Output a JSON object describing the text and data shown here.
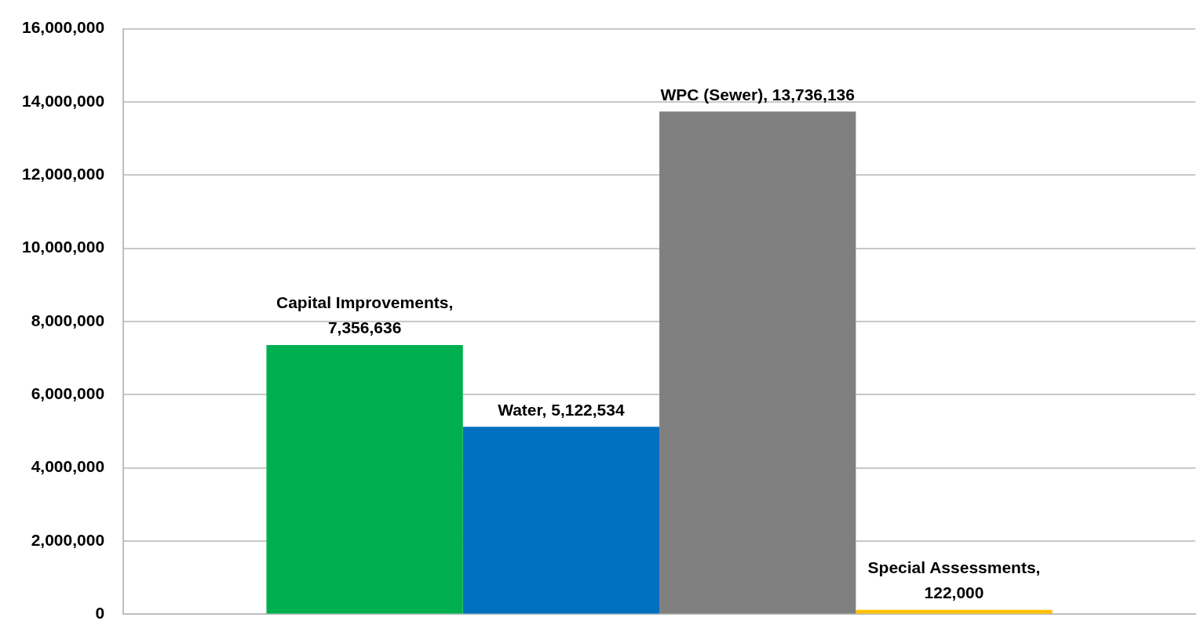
{
  "chart_data": {
    "type": "bar",
    "categories": [
      null
    ],
    "series": [
      {
        "color": "#00b050",
        "values": [
          7356636
        ],
        "value_labels": [
          "Capital Improvements, 7,356,636"
        ]
      },
      {
        "color": "#0070c0",
        "values": [
          5122534
        ],
        "value_labels": [
          "Water, 5,122,534"
        ]
      },
      {
        "color": "#808080",
        "values": [
          13736136
        ],
        "value_labels": [
          "WPC (Sewer), 13,736,136"
        ]
      },
      {
        "color": "#ffc000",
        "values": [
          122000
        ],
        "value_labels": [
          "Special Assessments, 122,000"
        ]
      }
    ],
    "ylim": [
      0,
      16000000
    ],
    "yticks": [
      {
        "value": 0,
        "label": "0"
      },
      {
        "value": 2000000,
        "label": "2,000,000"
      },
      {
        "value": 4000000,
        "label": "4,000,000"
      },
      {
        "value": 6000000,
        "label": "6,000,000"
      },
      {
        "value": 8000000,
        "label": "8,000,000"
      },
      {
        "value": 10000000,
        "label": "10,000,000"
      },
      {
        "value": 12000000,
        "label": "12,000,000"
      },
      {
        "value": 14000000,
        "label": "14,000,000"
      },
      {
        "value": 16000000,
        "label": "16,000,000"
      }
    ],
    "grid": "y",
    "legend": false,
    "tick_labels": "y"
  }
}
